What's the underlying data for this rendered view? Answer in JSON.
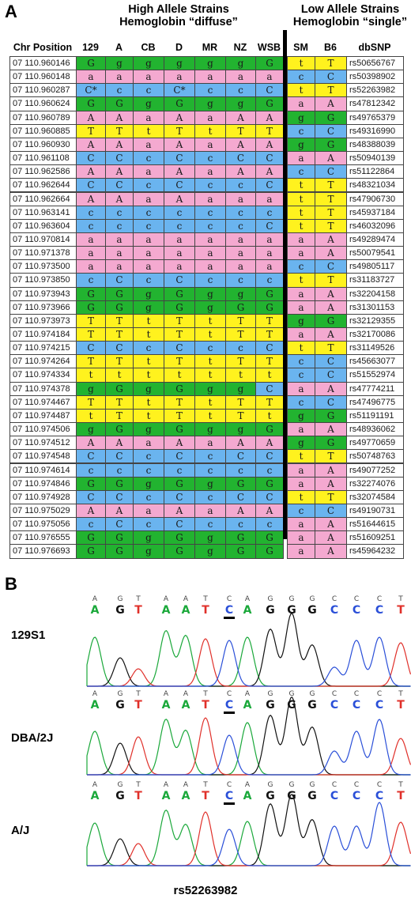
{
  "panel_a": {
    "letter": "A",
    "high_group": {
      "line1": "High Allele Strains",
      "line2": "Hemoglobin “diffuse”"
    },
    "low_group": {
      "line1": "Low Allele Strains",
      "line2": "Hemoglobin “single”"
    },
    "columns": [
      "Chr Position",
      "129",
      "A",
      "CB",
      "D",
      "MR",
      "NZ",
      "WSB",
      "SM",
      "B6",
      "dbSNP"
    ],
    "colors": {
      "a": "#f4a9d0",
      "c": "#6ab4ef",
      "g": "#22b330",
      "t": "#fff21e"
    },
    "rows": [
      [
        "07 110.960146",
        "G",
        "g",
        "g",
        "g",
        "g",
        "g",
        "G",
        "t",
        "T",
        "rs50656767"
      ],
      [
        "07 110.960148",
        "a",
        "a",
        "a",
        "a",
        "a",
        "a",
        "a",
        "c",
        "C",
        "rs50398902"
      ],
      [
        "07 110.960287",
        "C*",
        "c",
        "c",
        "C*",
        "c",
        "c",
        "C",
        "t",
        "T",
        "rs52263982"
      ],
      [
        "07 110.960624",
        "G",
        "G",
        "g",
        "G",
        "g",
        "g",
        "G",
        "a",
        "A",
        "rs47812342"
      ],
      [
        "07 110.960789",
        "A",
        "A",
        "a",
        "A",
        "a",
        "A",
        "A",
        "g",
        "G",
        "rs49765379"
      ],
      [
        "07 110.960885",
        "T",
        "T",
        "t",
        "T",
        "t",
        "T",
        "T",
        "c",
        "C",
        "rs49316990"
      ],
      [
        "07 110.960930",
        "A",
        "A",
        "a",
        "A",
        "a",
        "A",
        "A",
        "g",
        "G",
        "rs48388039"
      ],
      [
        "07 110.961108",
        "C",
        "C",
        "c",
        "C",
        "c",
        "C",
        "C",
        "a",
        "A",
        "rs50940139"
      ],
      [
        "07 110.962586",
        "A",
        "A",
        "a",
        "A",
        "a",
        "A",
        "A",
        "c",
        "C",
        "rs51122864"
      ],
      [
        "07 110.962644",
        "C",
        "C",
        "c",
        "C",
        "c",
        "c",
        "C",
        "t",
        "T",
        "rs48321034"
      ],
      [
        "07 110.962664",
        "A",
        "A",
        "a",
        "A",
        "a",
        "a",
        "a",
        "t",
        "T",
        "rs47906730"
      ],
      [
        "07 110.963141",
        "c",
        "c",
        "c",
        "c",
        "c",
        "c",
        "c",
        "t",
        "T",
        "rs45937184"
      ],
      [
        "07 110.963604",
        "c",
        "c",
        "c",
        "c",
        "c",
        "c",
        "C",
        "t",
        "T",
        "rs46032096"
      ],
      [
        "07 110.970814",
        "a",
        "a",
        "a",
        "a",
        "a",
        "a",
        "a",
        "a",
        "A",
        "rs49289474"
      ],
      [
        "07 110.971378",
        "a",
        "a",
        "a",
        "a",
        "a",
        "a",
        "a",
        "a",
        "A",
        "rs50079541"
      ],
      [
        "07 110.973500",
        "a",
        "a",
        "a",
        "a",
        "a",
        "a",
        "a",
        "c",
        "C",
        "rs49805117"
      ],
      [
        "07 110.973850",
        "c",
        "C",
        "c",
        "C",
        "c",
        "c",
        "c",
        "t",
        "T",
        "rs31183727"
      ],
      [
        "07 110.973943",
        "G",
        "G",
        "g",
        "G",
        "g",
        "g",
        "G",
        "a",
        "A",
        "rs32204158"
      ],
      [
        "07 110.973966",
        "G",
        "G",
        "g",
        "G",
        "g",
        "G",
        "G",
        "a",
        "A",
        "rs31301153"
      ],
      [
        "07 110.973973",
        "T",
        "T",
        "t",
        "T",
        "t",
        "T",
        "T",
        "g",
        "G",
        "rs32129355"
      ],
      [
        "07 110.974184",
        "T",
        "T",
        "t",
        "T",
        "t",
        "T",
        "T",
        "a",
        "A",
        "rs32170086"
      ],
      [
        "07 110.974215",
        "C",
        "C",
        "c",
        "C",
        "c",
        "c",
        "C",
        "t",
        "T",
        "rs31149526"
      ],
      [
        "07 110.974264",
        "T",
        "T",
        "t",
        "T",
        "t",
        "T",
        "T",
        "c",
        "C",
        "rs45663077"
      ],
      [
        "07 110.974334",
        "t",
        "t",
        "t",
        "t",
        "t",
        "t",
        "t",
        "c",
        "C",
        "rs51552974"
      ],
      [
        "07 110.974378",
        "g",
        "G",
        "g",
        "G",
        "g",
        "g",
        "C",
        "a",
        "A",
        "rs47774211"
      ],
      [
        "07 110.974467",
        "T",
        "T",
        "t",
        "T",
        "t",
        "T",
        "T",
        "c",
        "C",
        "rs47496775"
      ],
      [
        "07 110.974487",
        "t",
        "T",
        "t",
        "T",
        "t",
        "T",
        "t",
        "g",
        "G",
        "rs51191191"
      ],
      [
        "07 110.974506",
        "g",
        "G",
        "g",
        "G",
        "g",
        "g",
        "G",
        "a",
        "A",
        "rs48936062"
      ],
      [
        "07 110.974512",
        "A",
        "A",
        "a",
        "A",
        "a",
        "A",
        "A",
        "g",
        "G",
        "rs49770659"
      ],
      [
        "07 110.974548",
        "C",
        "C",
        "c",
        "C",
        "c",
        "C",
        "C",
        "t",
        "T",
        "rs50748763"
      ],
      [
        "07 110.974614",
        "c",
        "c",
        "c",
        "c",
        "c",
        "c",
        "c",
        "a",
        "A",
        "rs49077252"
      ],
      [
        "07 110.974846",
        "G",
        "G",
        "g",
        "G",
        "g",
        "G",
        "G",
        "a",
        "A",
        "rs32274076"
      ],
      [
        "07 110.974928",
        "C",
        "C",
        "c",
        "C",
        "c",
        "C",
        "C",
        "t",
        "T",
        "rs32074584"
      ],
      [
        "07 110.975029",
        "A",
        "A",
        "a",
        "A",
        "a",
        "A",
        "A",
        "c",
        "C",
        "rs49190731"
      ],
      [
        "07 110.975056",
        "c",
        "C",
        "c",
        "C",
        "c",
        "c",
        "c",
        "a",
        "A",
        "rs51644615"
      ],
      [
        "07 110.976555",
        "G",
        "G",
        "g",
        "G",
        "g",
        "G",
        "G",
        "a",
        "A",
        "rs51609251"
      ],
      [
        "07 110.976693",
        "G",
        "G",
        "g",
        "G",
        "g",
        "G",
        "G",
        "a",
        "A",
        "rs45964232"
      ]
    ]
  },
  "panel_b": {
    "letter": "B",
    "sequence": [
      "A",
      "G",
      "T",
      "A",
      "A",
      "T",
      "C",
      "A",
      "G",
      "G",
      "G",
      "C",
      "C",
      "C",
      "T"
    ],
    "highlight_index": 6,
    "base_colors": {
      "A": "#1aa83a",
      "G": "#111111",
      "T": "#e0302a",
      "C": "#2a4fd8"
    },
    "traces": [
      {
        "label": "129S1"
      },
      {
        "label": "DBA/2J"
      },
      {
        "label": "A/J"
      }
    ],
    "footer": "rs52263982"
  }
}
